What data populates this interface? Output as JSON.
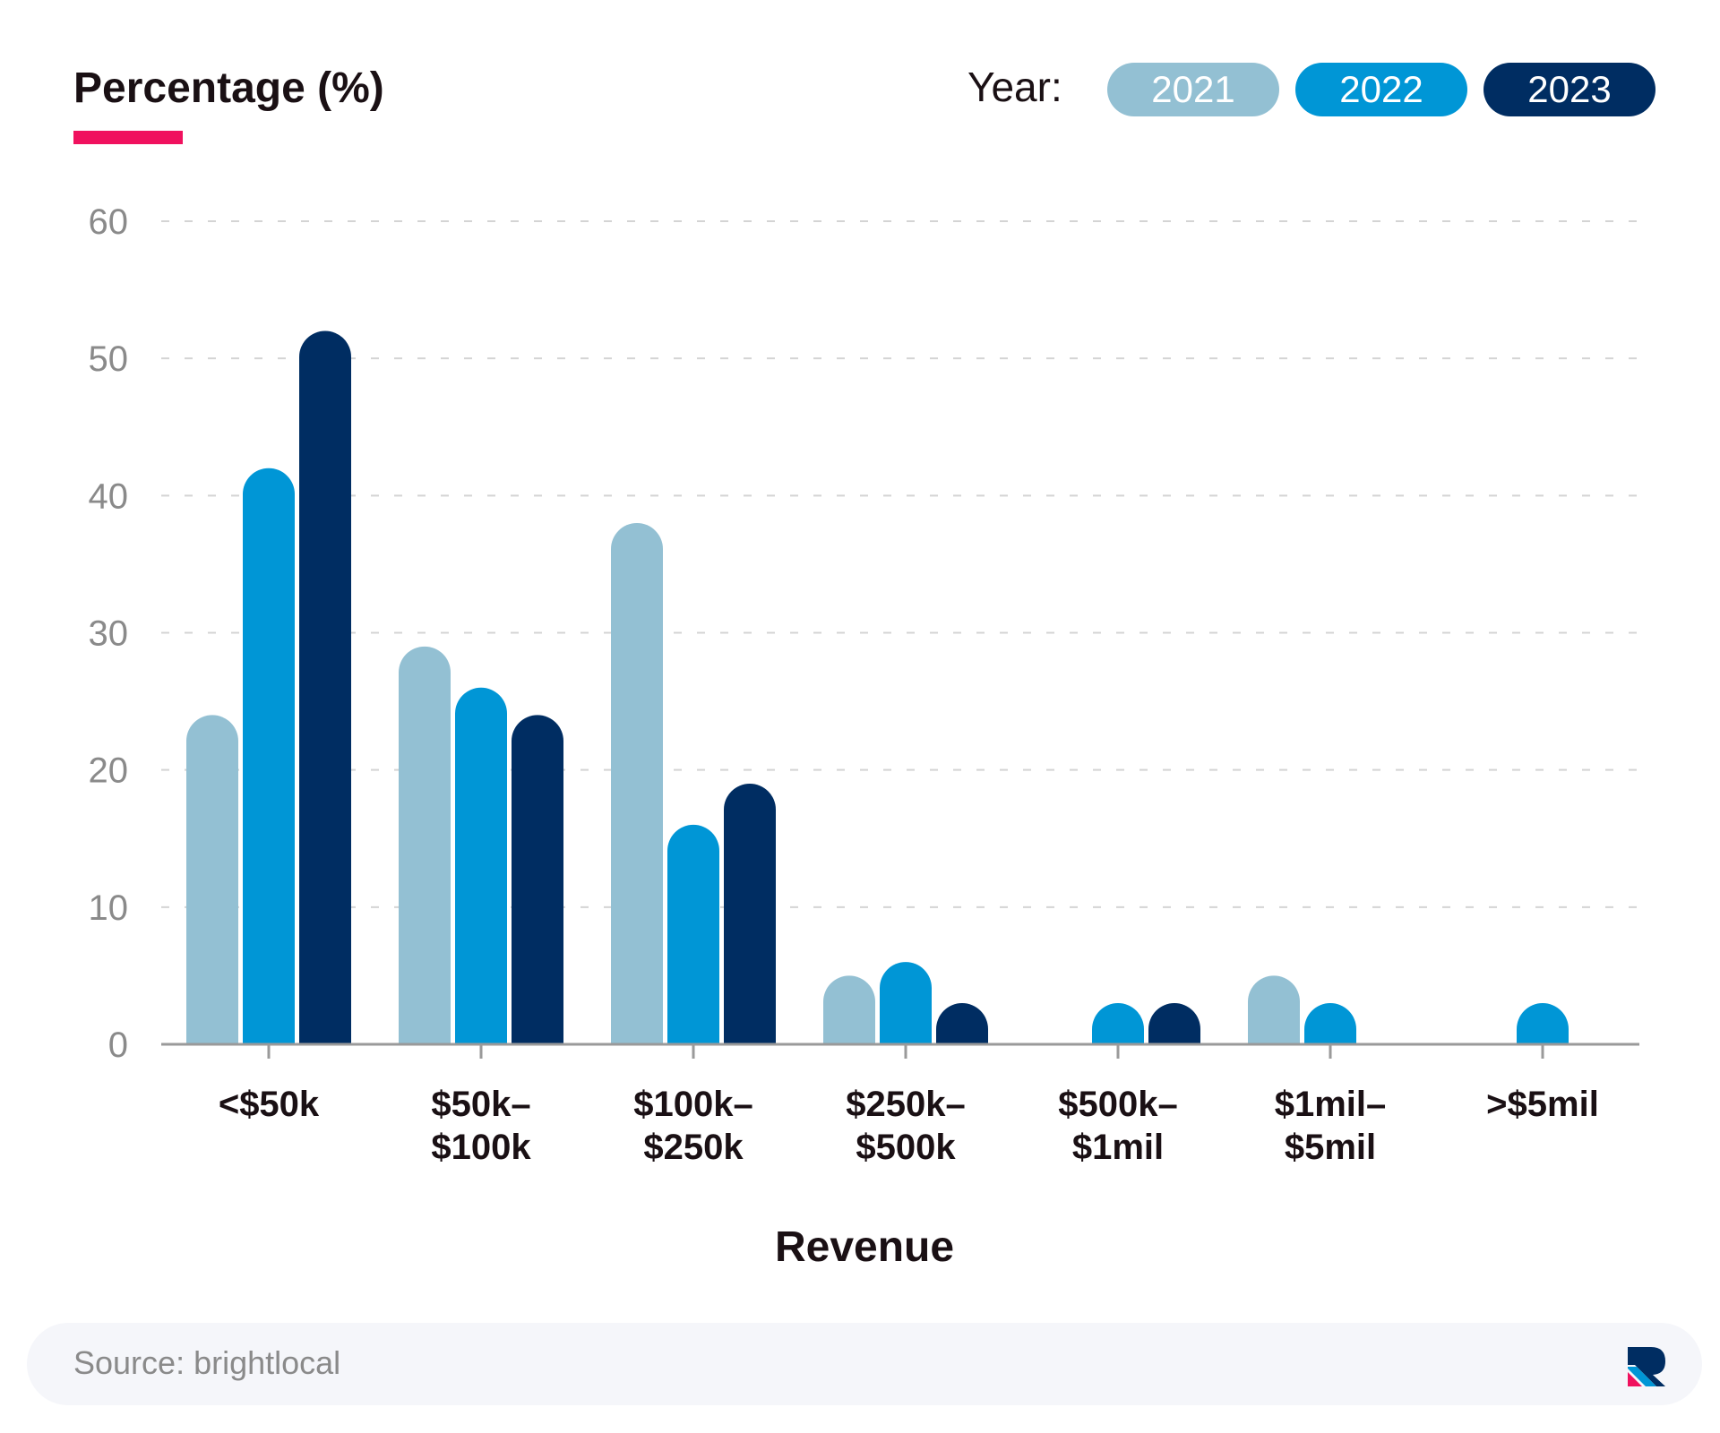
{
  "chart_data": {
    "type": "bar",
    "title": "",
    "ylabel": "Percentage (%)",
    "xlabel": "Revenue",
    "ylim": [
      0,
      60
    ],
    "yticks": [
      0,
      10,
      20,
      30,
      40,
      50,
      60
    ],
    "grid": true,
    "legend": {
      "prefix": "Year:",
      "placement": "top-right"
    },
    "categories": [
      [
        "<$50k"
      ],
      [
        "$50k–",
        "$100k"
      ],
      [
        "$100k–",
        "$250k"
      ],
      [
        "$250k–",
        "$500k"
      ],
      [
        "$500k–",
        "$1mil"
      ],
      [
        "$1mil–",
        "$5mil"
      ],
      [
        ">$5mil"
      ]
    ],
    "series": [
      {
        "name": "2021",
        "color": "#93c0d3",
        "values": [
          24,
          29,
          38,
          5,
          0,
          5,
          0
        ]
      },
      {
        "name": "2022",
        "color": "#0096d6",
        "values": [
          42,
          26,
          16,
          6,
          3,
          3,
          3
        ]
      },
      {
        "name": "2023",
        "color": "#002d62",
        "values": [
          52,
          24,
          19,
          3,
          3,
          0,
          0
        ]
      }
    ]
  },
  "accent_color": "#f0115e",
  "footer": {
    "source": "Source: brightlocal"
  },
  "logo_icon": "brand-logo-icon"
}
